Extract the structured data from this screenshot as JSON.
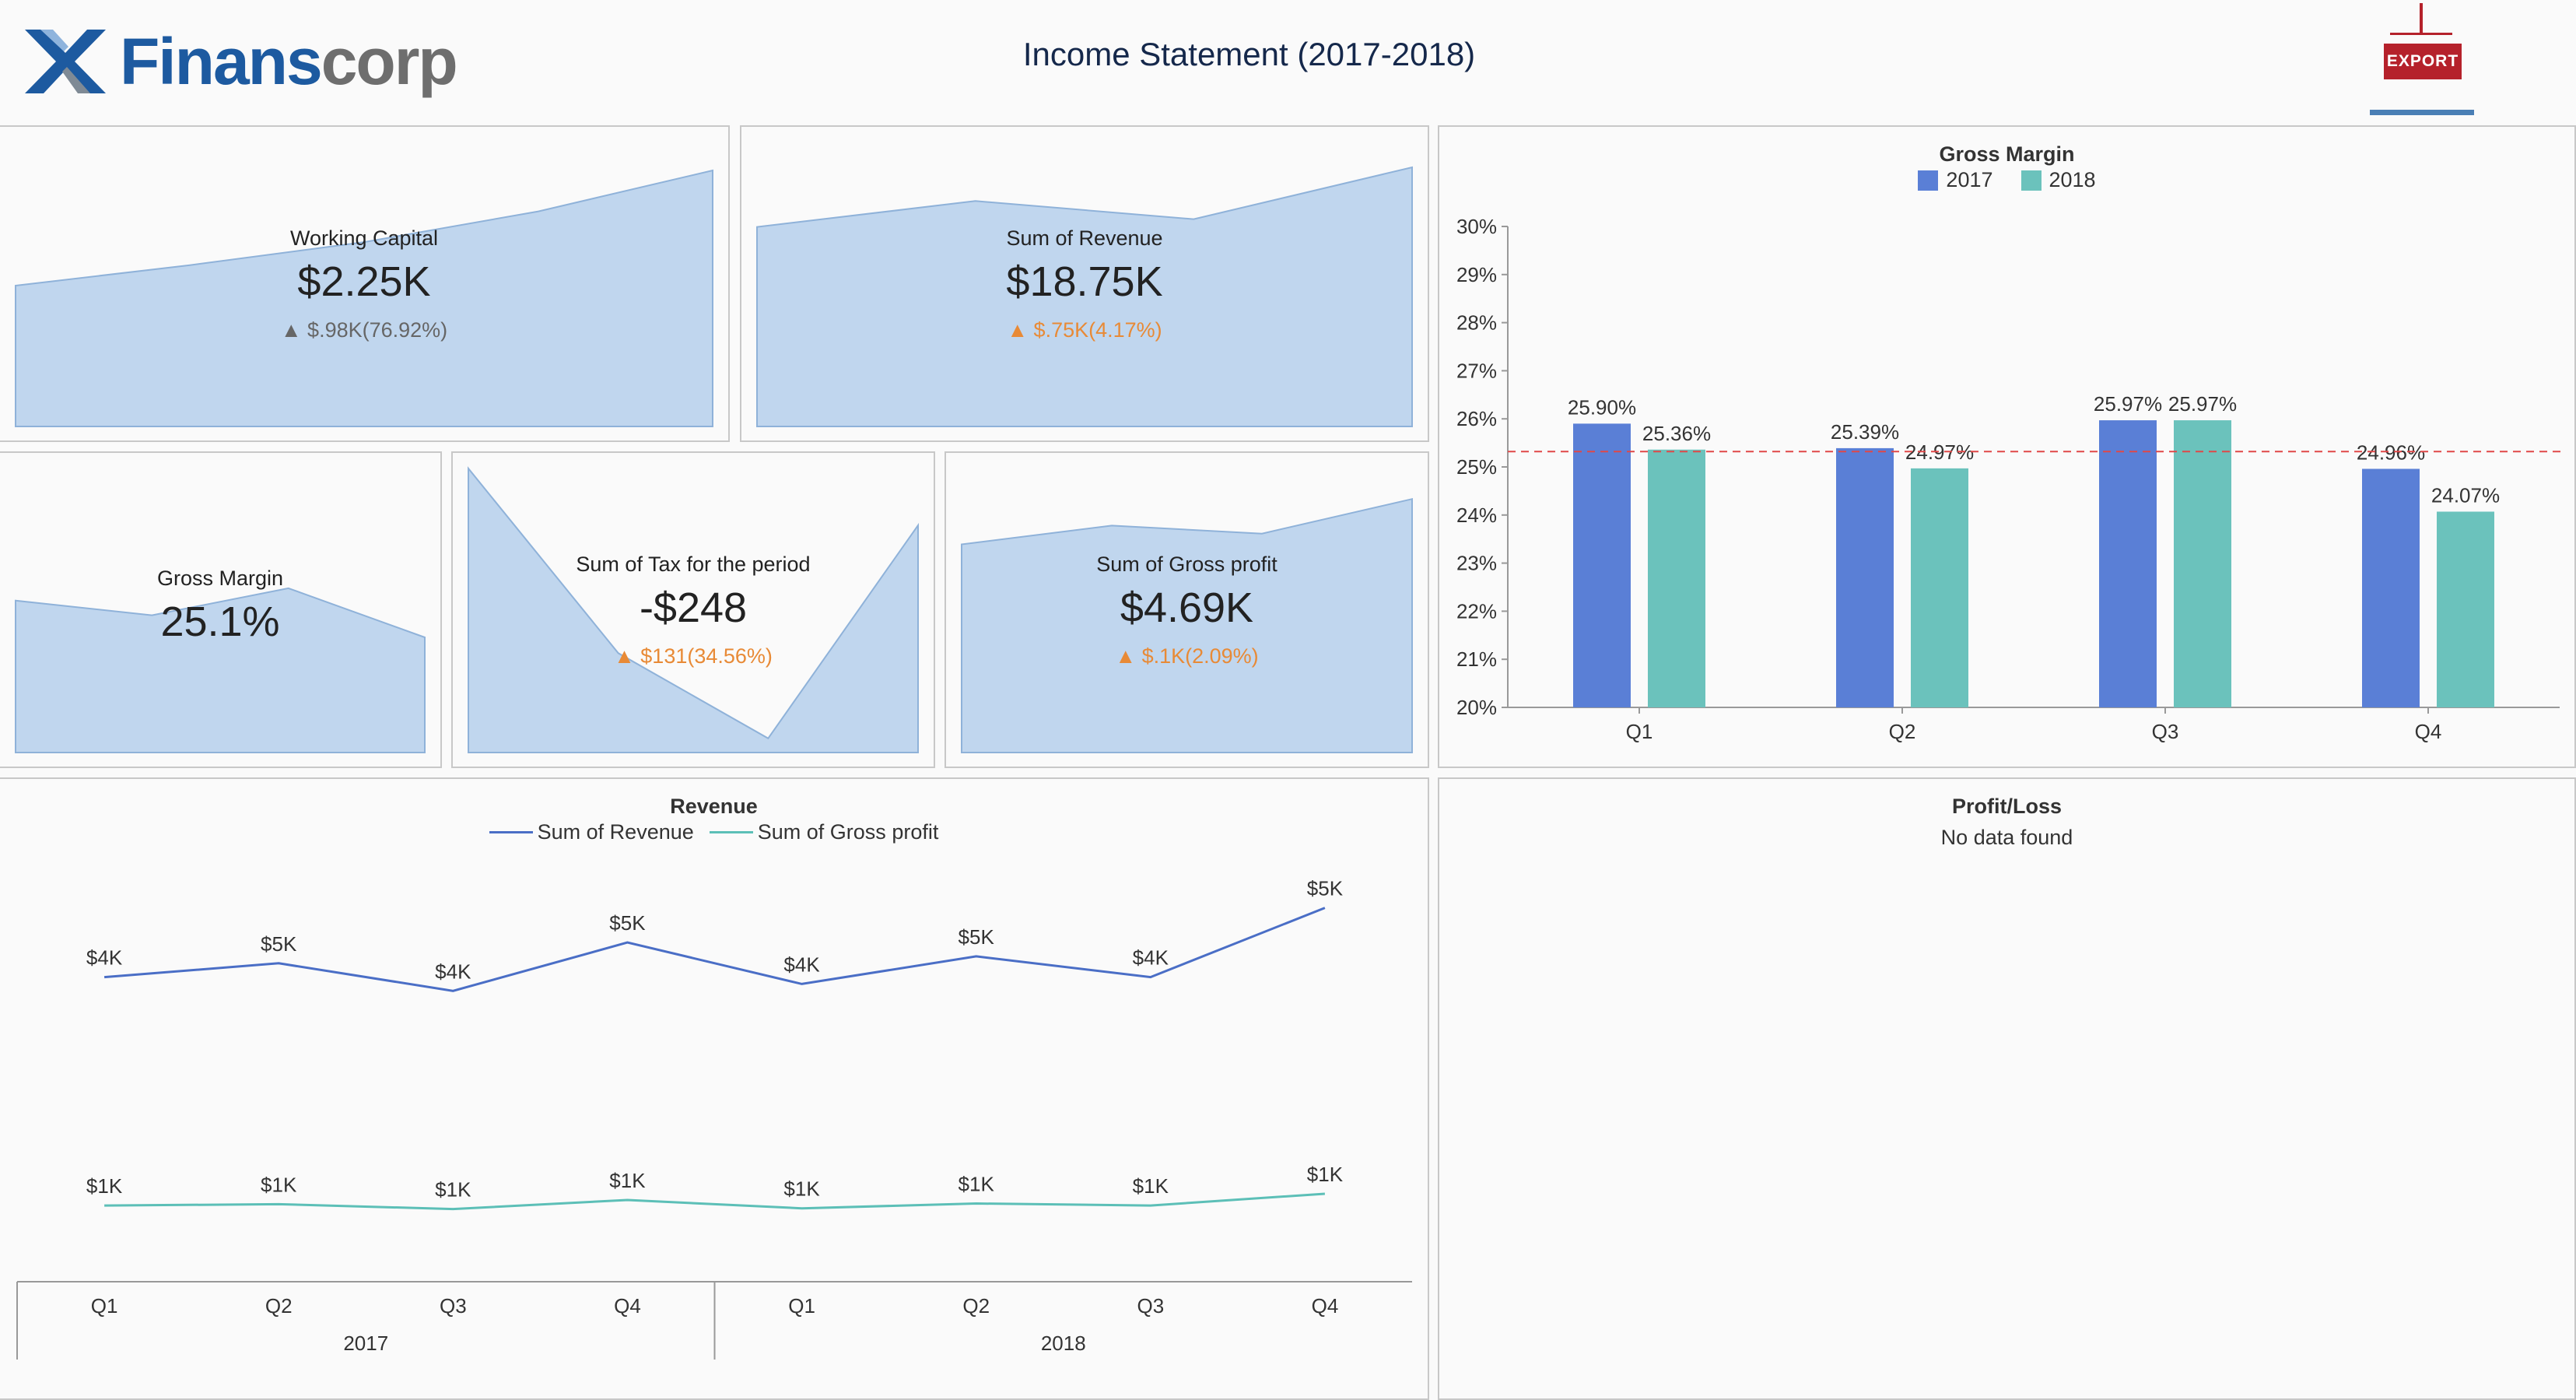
{
  "header": {
    "logo_name_primary": "Finans",
    "logo_name_secondary": "corp",
    "title": "Income Statement (2017-2018)",
    "export_label": "EXPORT"
  },
  "kpis": {
    "working_capital": {
      "title": "Working Capital",
      "value": "$2.25K",
      "delta": "▲ $.98K(76.92%)",
      "trend": [
        0.55,
        0.63,
        0.72,
        0.84,
        1.0
      ]
    },
    "sum_of_revenue": {
      "title": "Sum of Revenue",
      "value": "$18.75K",
      "delta": "▲ $.75K(4.17%)",
      "trend": [
        0.77,
        0.87,
        0.8,
        1.0
      ]
    },
    "gross_margin": {
      "title": "Gross Margin",
      "value": "25.1%",
      "trend": [
        0.62,
        0.56,
        0.67,
        0.47
      ]
    },
    "sum_of_tax": {
      "title": "Sum of Tax for the period",
      "value": "-$248",
      "delta": "▲ $131(34.56%)",
      "trend": [
        1.0,
        0.35,
        0.05,
        0.8
      ]
    },
    "sum_of_gross_profit": {
      "title": "Sum of Gross profit",
      "value": "$4.69K",
      "delta": "▲ $.1K(2.09%)",
      "trend": [
        0.78,
        0.85,
        0.82,
        0.95
      ]
    }
  },
  "colors": {
    "area_fill": "#c0d6ee",
    "area_stroke": "#8fb2d9",
    "bar_2017": "#5a7fd6",
    "bar_2018": "#6bc2bc",
    "avg_line": "#e04848",
    "line_revenue": "#4a6ec6",
    "line_gross_profit": "#5cbfb7"
  },
  "gross_margin_chart": {
    "title": "Gross Margin",
    "legend": [
      "2017",
      "2018"
    ],
    "y_ticks": [
      "30%",
      "29%",
      "28%",
      "27%",
      "26%",
      "25%",
      "24%",
      "23%",
      "22%",
      "21%",
      "20%"
    ]
  },
  "revenue_chart": {
    "title": "Revenue",
    "legend": [
      "Sum of Revenue",
      "Sum of Gross profit"
    ],
    "years": [
      "2017",
      "2018"
    ]
  },
  "profit_loss": {
    "title": "Profit/Loss",
    "message": "No data found"
  },
  "chart_data": [
    {
      "type": "bar",
      "title": "Gross Margin",
      "categories": [
        "Q1",
        "Q2",
        "Q3",
        "Q4"
      ],
      "series": [
        {
          "name": "2017",
          "values": [
            25.9,
            25.39,
            25.97,
            24.96
          ],
          "labels": [
            "25.90%",
            "25.39%",
            "25.97%",
            "24.96%"
          ]
        },
        {
          "name": "2018",
          "values": [
            25.36,
            24.97,
            25.97,
            24.07
          ],
          "labels": [
            "25.36%",
            "24.97%",
            "25.97%",
            "24.07%"
          ]
        }
      ],
      "reference_line": 25.32,
      "ylim": [
        20,
        30
      ],
      "legend_position": "top"
    },
    {
      "type": "line",
      "title": "Revenue",
      "categories": [
        "Q1",
        "Q2",
        "Q3",
        "Q4",
        "Q1",
        "Q2",
        "Q3",
        "Q4"
      ],
      "groups": [
        "2017",
        "2018"
      ],
      "series": [
        {
          "name": "Sum of Revenue",
          "values": [
            4.4,
            4.6,
            4.2,
            4.9,
            4.3,
            4.7,
            4.4,
            5.4
          ],
          "labels": [
            "$4K",
            "$5K",
            "$4K",
            "$5K",
            "$4K",
            "$5K",
            "$4K",
            "$5K"
          ]
        },
        {
          "name": "Sum of Gross profit",
          "values": [
            1.1,
            1.12,
            1.05,
            1.18,
            1.06,
            1.13,
            1.1,
            1.27
          ],
          "labels": [
            "$1K",
            "$1K",
            "$1K",
            "$1K",
            "$1K",
            "$1K",
            "$1K",
            "$1K"
          ]
        }
      ],
      "ylim": [
        0,
        5.8
      ],
      "legend_position": "top"
    }
  ]
}
